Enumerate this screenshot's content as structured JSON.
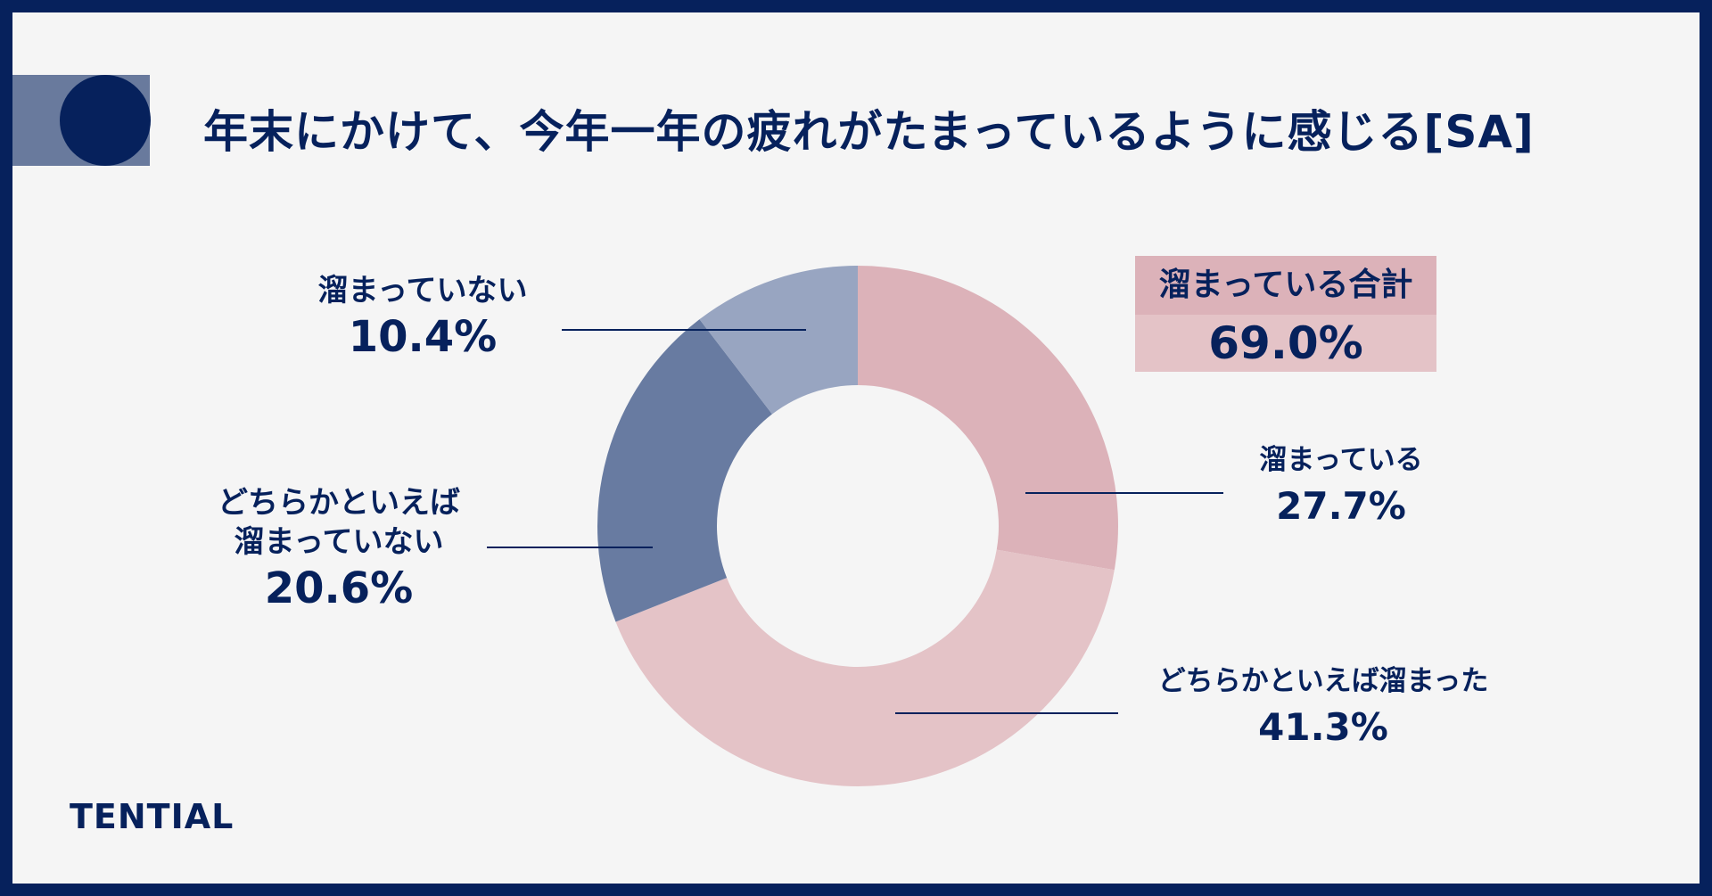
{
  "title": "年末にかけて、今年一年の疲れがたまっているように感じる[SA]",
  "brand": "TENTIAL",
  "summary": {
    "label": "溜まっている合計",
    "value": "69.0%"
  },
  "colors": {
    "navy": "#06215c",
    "pink_dark": "#dcb2b9",
    "pink_light": "#e4c3c7",
    "blue_mid": "#687ba1",
    "blue_light": "#98a5c1"
  },
  "chart_data": {
    "type": "pie",
    "donut": true,
    "title": "年末にかけて、今年一年の疲れがたまっているように感じる[SA]",
    "slices": [
      {
        "label": "溜まっている",
        "value": 27.7,
        "display": "27.7%",
        "color": "#dcb2b9"
      },
      {
        "label": "どちらかといえば溜まった",
        "value": 41.3,
        "display": "41.3%",
        "color": "#e4c3c7"
      },
      {
        "label": "どちらかといえば\n溜まっていない",
        "value": 20.6,
        "display": "20.6%",
        "color": "#687ba1"
      },
      {
        "label": "溜まっていない",
        "value": 10.4,
        "display": "10.4%",
        "color": "#98a5c1"
      }
    ]
  }
}
